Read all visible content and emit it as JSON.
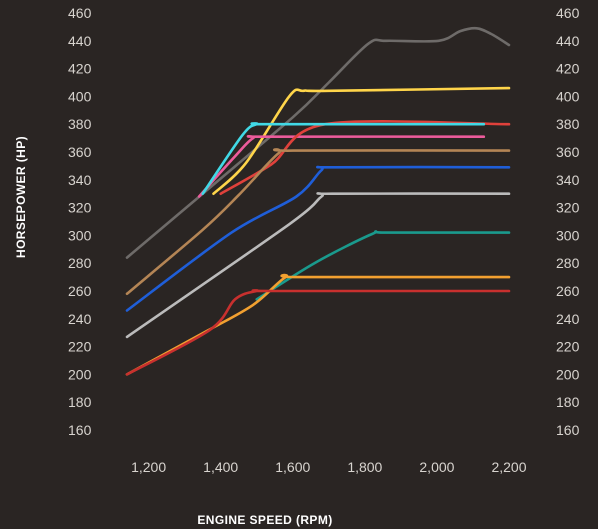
{
  "chart_data": {
    "type": "line",
    "xlabel": "ENGINE SPEED (RPM)",
    "ylabel": "HORSEPOWER (HP)",
    "xlim": [
      1140,
      2200
    ],
    "ylim": [
      160,
      460
    ],
    "x_ticks": [
      1200,
      1400,
      1600,
      1800,
      2000,
      2200
    ],
    "x_tick_labels": [
      "1,200",
      "1,400",
      "1,600",
      "1,800",
      "2,000",
      "2,200"
    ],
    "y_ticks": [
      160,
      180,
      200,
      220,
      240,
      260,
      280,
      300,
      320,
      340,
      360,
      380,
      400,
      420,
      440,
      460
    ],
    "y_tick_labels": [
      "160",
      "180",
      "200",
      "220",
      "240",
      "260",
      "280",
      "300",
      "320",
      "340",
      "360",
      "380",
      "400",
      "420",
      "440",
      "460"
    ],
    "grid": false,
    "series": [
      {
        "color": "#6e6b69",
        "points": [
          [
            1140,
            284
          ],
          [
            1350,
            330
          ],
          [
            1600,
            385
          ],
          [
            1700,
            410
          ],
          [
            1810,
            438
          ],
          [
            1860,
            440
          ],
          [
            2005,
            440
          ],
          [
            2065,
            447
          ],
          [
            2110,
            449
          ],
          [
            2150,
            445
          ],
          [
            2200,
            437
          ]
        ]
      },
      {
        "color": "#ffd54a",
        "points": [
          [
            1380,
            330
          ],
          [
            1470,
            352
          ],
          [
            1590,
            400
          ],
          [
            1630,
            404
          ],
          [
            1700,
            404
          ],
          [
            2200,
            406
          ]
        ]
      },
      {
        "color": "#ec5b9b",
        "points": [
          [
            1340,
            328
          ],
          [
            1440,
            357
          ],
          [
            1490,
            370
          ],
          [
            1530,
            371
          ],
          [
            2130,
            371
          ]
        ]
      },
      {
        "color": "#e0413b",
        "points": [
          [
            1400,
            330
          ],
          [
            1540,
            351
          ],
          [
            1690,
            380
          ],
          [
            2200,
            380
          ]
        ]
      },
      {
        "color": "#41d9e6",
        "points": [
          [
            1350,
            330
          ],
          [
            1460,
            372
          ],
          [
            1500,
            380
          ],
          [
            1540,
            380
          ],
          [
            2130,
            380
          ]
        ]
      },
      {
        "color": "#b48555",
        "points": [
          [
            1140,
            258
          ],
          [
            1350,
            304
          ],
          [
            1450,
            329
          ],
          [
            1560,
            359
          ],
          [
            1600,
            361
          ],
          [
            2200,
            361
          ]
        ]
      },
      {
        "color": "#1f5ed8",
        "points": [
          [
            1140,
            246
          ],
          [
            1430,
            302
          ],
          [
            1610,
            328
          ],
          [
            1680,
            347
          ],
          [
            1710,
            349
          ],
          [
            2200,
            349
          ]
        ]
      },
      {
        "color": "#bbbbbb",
        "points": [
          [
            1140,
            227
          ],
          [
            1590,
            308
          ],
          [
            1680,
            328
          ],
          [
            1710,
            330
          ],
          [
            2200,
            330
          ]
        ]
      },
      {
        "color": "#1a9a8d",
        "points": [
          [
            1500,
            254
          ],
          [
            1660,
            280
          ],
          [
            1820,
            301
          ],
          [
            1860,
            302
          ],
          [
            2200,
            302
          ]
        ]
      },
      {
        "color": "#f2a030",
        "points": [
          [
            1140,
            200
          ],
          [
            1360,
            231
          ],
          [
            1490,
            250
          ],
          [
            1580,
            270
          ],
          [
            1620,
            270
          ],
          [
            2200,
            270
          ]
        ]
      },
      {
        "color": "#c8302e",
        "points": [
          [
            1140,
            200
          ],
          [
            1370,
            232
          ],
          [
            1440,
            254
          ],
          [
            1500,
            260
          ],
          [
            1550,
            260
          ],
          [
            2200,
            260
          ]
        ]
      }
    ]
  }
}
